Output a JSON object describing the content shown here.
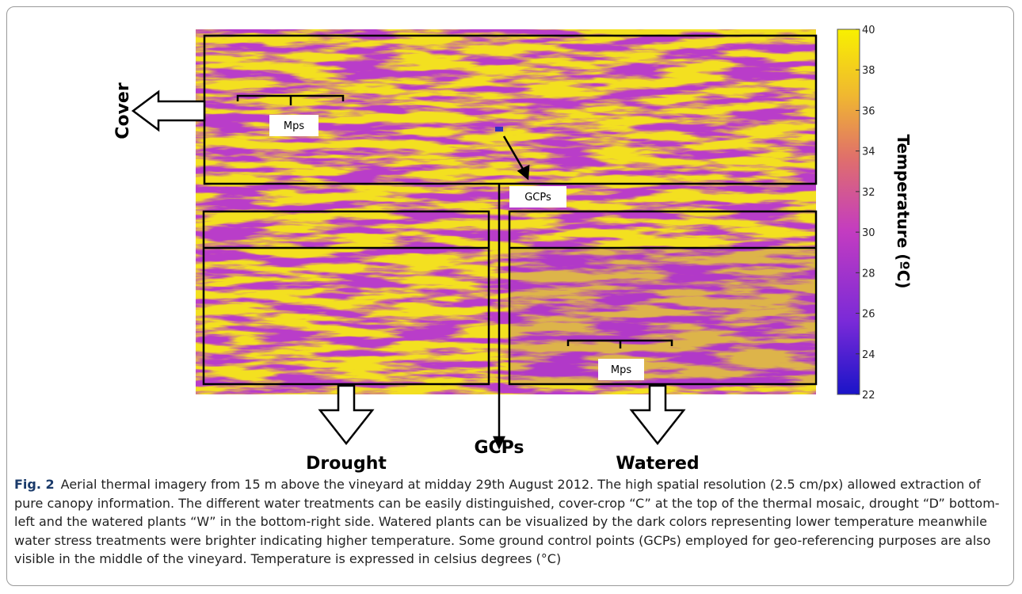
{
  "figure": {
    "labels": {
      "cover": "Cover",
      "drought": "Drought",
      "gcps_bottom": "GCPs",
      "watered": "Watered",
      "mps_top": "Mps",
      "gcps_box": "GCPs",
      "mps_bottom": "Mps"
    },
    "colorbar": {
      "title": "Temperature (ºC)",
      "range": [
        22,
        40
      ],
      "ticks": [
        22,
        24,
        26,
        28,
        30,
        32,
        34,
        36,
        38,
        40
      ]
    }
  },
  "caption": {
    "label": "Fig. 2",
    "text": "Aerial thermal imagery from 15 m above the vineyard at midday 29th August 2012. The high spatial resolution (2.5 cm/px) allowed extraction of pure canopy information. The different water treatments can be easily distinguished, cover-crop “C” at the top of the thermal mosaic, drought “D” bottom-left and the watered plants “W” in the bottom-right side. Watered plants can be visualized by the dark colors representing lower temperature meanwhile water stress treatments were brighter indicating higher temperature. Some ground control points (GCPs) employed for geo-referencing purposes are also visible in the middle of the vineyard. Temperature is expressed in celsius degrees (°C)"
  }
}
